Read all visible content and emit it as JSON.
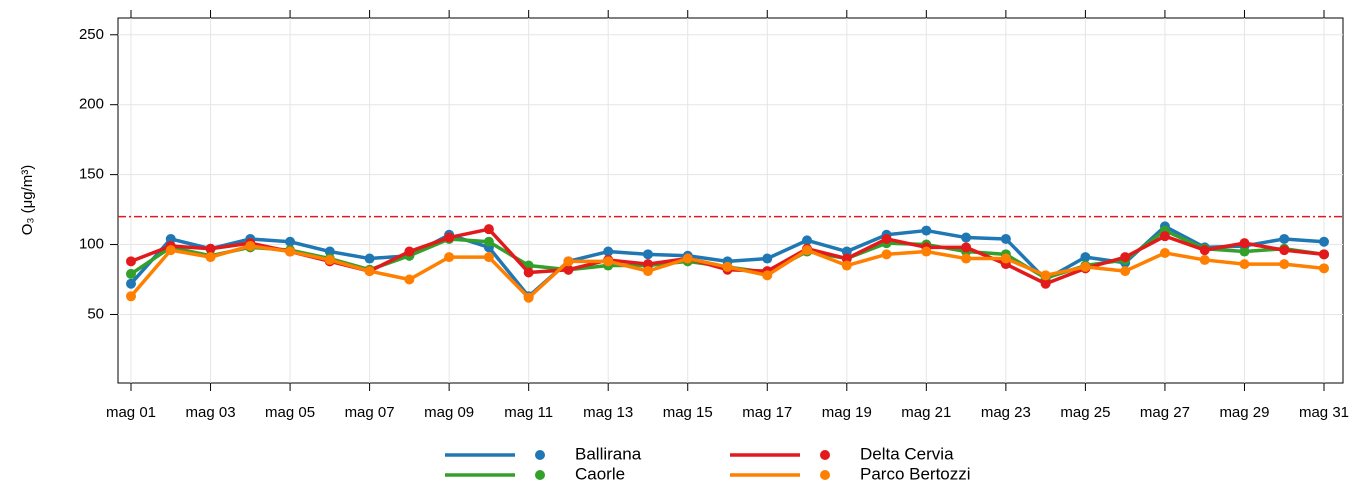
{
  "chart_data": {
    "type": "line",
    "ylabel": "O₃ (μg/m³)",
    "categories": [
      "mag 01",
      null,
      "mag 03",
      null,
      "mag 05",
      null,
      "mag 07",
      null,
      "mag 09",
      null,
      "mag 11",
      null,
      "mag 13",
      null,
      "mag 15",
      null,
      "mag 17",
      null,
      "mag 19",
      null,
      "mag 21",
      null,
      "mag 23",
      null,
      "mag 25",
      null,
      "mag 27",
      null,
      "mag 29",
      null,
      "mag 31"
    ],
    "series": [
      {
        "name": "Ballirana",
        "color": "#1f78b4",
        "values": [
          72,
          104,
          97,
          104,
          102,
          95,
          90,
          92,
          107,
          98,
          63,
          88,
          95,
          93,
          92,
          88,
          90,
          103,
          95,
          107,
          110,
          105,
          104,
          75,
          91,
          87,
          113,
          98,
          99,
          104,
          102
        ]
      },
      {
        "name": "Caorle",
        "color": "#33a02c",
        "values": [
          79,
          98,
          92,
          98,
          96,
          90,
          82,
          92,
          104,
          102,
          85,
          82,
          85,
          85,
          88,
          84,
          80,
          95,
          90,
          101,
          100,
          95,
          93,
          76,
          85,
          89,
          110,
          97,
          95,
          97,
          93
        ]
      },
      {
        "name": "Delta Cervia",
        "color": "#e31a1c",
        "values": [
          88,
          99,
          97,
          101,
          95,
          88,
          81,
          95,
          105,
          111,
          80,
          82,
          89,
          86,
          90,
          82,
          81,
          97,
          90,
          104,
          98,
          98,
          86,
          72,
          83,
          91,
          106,
          96,
          101,
          96,
          93
        ]
      },
      {
        "name": "Parco Bertozzi",
        "color": "#ff7f00",
        "values": [
          63,
          96,
          91,
          99,
          95,
          89,
          81,
          75,
          91,
          91,
          62,
          88,
          88,
          81,
          90,
          84,
          78,
          96,
          85,
          93,
          95,
          90,
          90,
          78,
          84,
          81,
          94,
          89,
          86,
          86,
          83
        ]
      }
    ],
    "threshold": 120,
    "threshold_color": "#e31a1c",
    "ylim": [
      1,
      262
    ],
    "yticks": [
      50,
      100,
      150,
      200,
      250
    ],
    "grid": true
  }
}
